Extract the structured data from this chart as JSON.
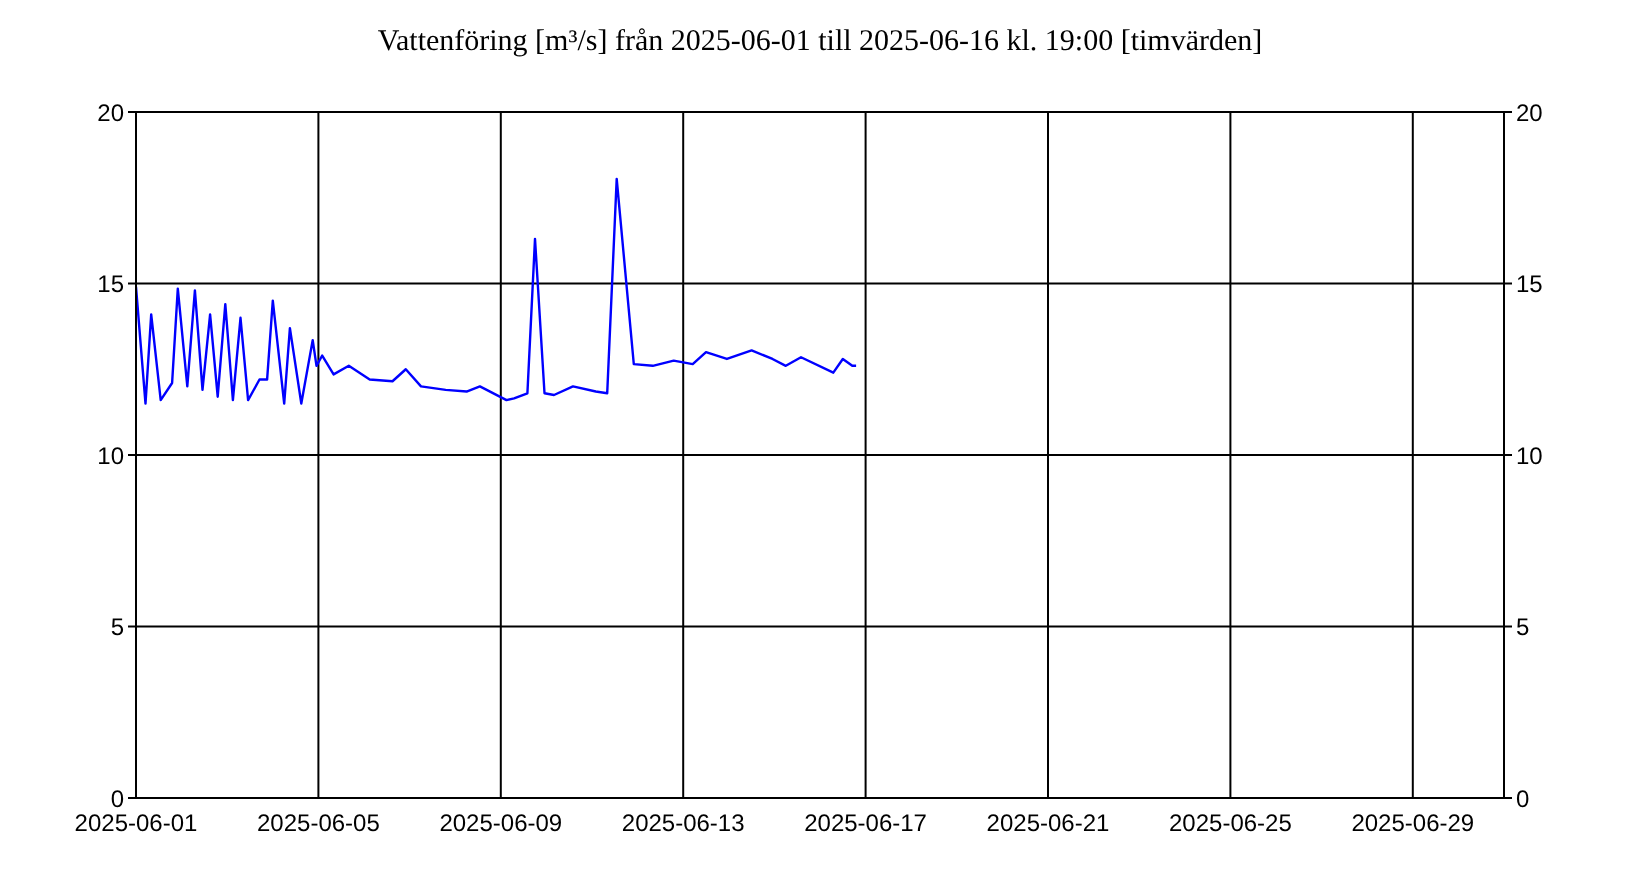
{
  "chart_data": {
    "type": "line",
    "title": "Vattenföring [m³/s] från 2025-06-01 till 2025-06-16 kl. 19:00 [timvärden]",
    "x": [
      "2025-06-01T00:00",
      "2025-06-01T05:00",
      "2025-06-01T08:00",
      "2025-06-01T13:00",
      "2025-06-01T19:00",
      "2025-06-01T22:00",
      "2025-06-02T03:00",
      "2025-06-02T07:00",
      "2025-06-02T11:00",
      "2025-06-02T15:00",
      "2025-06-02T19:00",
      "2025-06-02T23:00",
      "2025-06-03T03:00",
      "2025-06-03T07:00",
      "2025-06-03T11:00",
      "2025-06-03T17:00",
      "2025-06-03T21:00",
      "2025-06-04T00:00",
      "2025-06-04T06:00",
      "2025-06-04T09:00",
      "2025-06-04T15:00",
      "2025-06-04T21:00",
      "2025-06-04T23:00",
      "2025-06-05T02:00",
      "2025-06-05T08:00",
      "2025-06-05T16:00",
      "2025-06-06T03:00",
      "2025-06-06T15:00",
      "2025-06-06T22:00",
      "2025-06-07T06:00",
      "2025-06-07T19:00",
      "2025-06-08T06:00",
      "2025-06-08T13:00",
      "2025-06-09T03:00",
      "2025-06-09T07:00",
      "2025-06-09T14:00",
      "2025-06-09T18:00",
      "2025-06-09T23:00",
      "2025-06-10T04:00",
      "2025-06-10T14:00",
      "2025-06-11T02:00",
      "2025-06-11T08:00",
      "2025-06-11T13:00",
      "2025-06-11T22:00",
      "2025-06-12T08:00",
      "2025-06-12T19:00",
      "2025-06-13T05:00",
      "2025-06-13T12:00",
      "2025-06-13T23:00",
      "2025-06-14T12:00",
      "2025-06-14T23:00",
      "2025-06-15T06:00",
      "2025-06-15T14:00",
      "2025-06-16T07:00",
      "2025-06-16T12:00",
      "2025-06-16T17:00",
      "2025-06-16T19:00"
    ],
    "series": [
      {
        "color": "#0000ff",
        "values": [
          14.9,
          11.5,
          14.1,
          11.6,
          12.1,
          14.85,
          12.0,
          14.8,
          11.9,
          14.1,
          11.7,
          14.4,
          11.6,
          14.0,
          11.6,
          12.2,
          12.2,
          14.5,
          11.5,
          13.7,
          11.5,
          13.35,
          12.6,
          12.9,
          12.35,
          12.6,
          12.2,
          12.15,
          12.5,
          12.0,
          11.9,
          11.85,
          12.0,
          11.6,
          11.65,
          11.8,
          16.3,
          11.8,
          11.75,
          12.0,
          11.85,
          11.8,
          18.05,
          12.65,
          12.6,
          12.75,
          12.65,
          13.0,
          12.8,
          13.05,
          12.8,
          12.6,
          12.85,
          12.4,
          12.8,
          12.6,
          12.6
        ]
      }
    ],
    "xlim": [
      "2025-06-01",
      "2025-07-01"
    ],
    "xticks": [
      "2025-06-01",
      "2025-06-05",
      "2025-06-09",
      "2025-06-13",
      "2025-06-17",
      "2025-06-21",
      "2025-06-25",
      "2025-06-29"
    ],
    "ylim": [
      0,
      20
    ],
    "yticks": [
      0,
      5,
      10,
      15,
      20
    ],
    "y2lim": [
      0,
      20
    ],
    "y2ticks": [
      0,
      5,
      10,
      15,
      20
    ],
    "grid": true,
    "marker": "none",
    "line_style": "solid"
  }
}
